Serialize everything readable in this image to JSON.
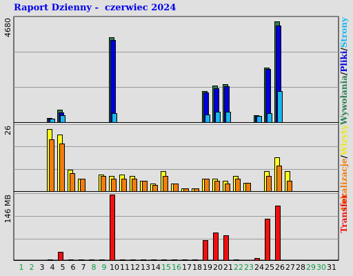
{
  "chart_data": {
    "type": "bar",
    "title": "Raport Dzienny -  czerwiec 2024",
    "days": [
      "1",
      "2",
      "3",
      "4",
      "5",
      "6",
      "7",
      "8",
      "9",
      "10",
      "11",
      "12",
      "13",
      "14",
      "15",
      "16",
      "17",
      "18",
      "19",
      "20",
      "21",
      "22",
      "23",
      "24",
      "25",
      "26",
      "27",
      "28",
      "29",
      "30",
      "31"
    ],
    "weekend_days": [
      1,
      2,
      8,
      9,
      15,
      16,
      22,
      23,
      29,
      30
    ],
    "colors": {
      "visits": "#2f7f4f",
      "pages": "#0000dd",
      "hits": "#19b6f0",
      "locations": "#ffff22",
      "visitors": "#f07d10",
      "transfer": "#ee1111",
      "weekday_label": "#000000",
      "weekend_label": "#119944"
    },
    "panels": [
      {
        "name": "top",
        "ymax_label": "4680",
        "ylim": [
          0,
          4680
        ],
        "legend": [
          {
            "text": "Wywołania",
            "color": "#2f7f4f"
          },
          {
            "text": "/",
            "color": "#000000"
          },
          {
            "text": "Pliki",
            "color": "#0000dd"
          },
          {
            "text": "/",
            "color": "#000000"
          },
          {
            "text": "Strony",
            "color": "#19b6f0"
          }
        ],
        "series": [
          {
            "name": "Wywołania",
            "color": "#2f7f4f",
            "values": [
              0,
              0,
              0,
              180,
              560,
              0,
              0,
              0,
              0,
              3820,
              0,
              0,
              0,
              0,
              0,
              0,
              0,
              0,
              1380,
              1650,
              1720,
              0,
              0,
              320,
              2460,
              4540,
              0,
              0,
              0,
              0,
              0
            ]
          },
          {
            "name": "Pliki",
            "color": "#0000dd",
            "values": [
              0,
              0,
              0,
              150,
              430,
              0,
              0,
              0,
              0,
              3700,
              0,
              0,
              0,
              0,
              0,
              0,
              0,
              0,
              1320,
              1520,
              1600,
              0,
              0,
              280,
              2380,
              4350,
              0,
              0,
              0,
              0,
              0
            ]
          },
          {
            "name": "Strony",
            "color": "#19b6f0",
            "values": [
              0,
              0,
              0,
              150,
              300,
              0,
              0,
              0,
              0,
              400,
              0,
              0,
              0,
              0,
              0,
              0,
              0,
              0,
              330,
              460,
              460,
              0,
              0,
              280,
              400,
              1400,
              0,
              0,
              0,
              0,
              0
            ]
          }
        ]
      },
      {
        "name": "middle",
        "ymax_label": "26",
        "ylim": [
          0,
          26
        ],
        "legend": [
          {
            "text": "Lokalizacje",
            "color": "#f07d10"
          },
          {
            "text": "/",
            "color": "#000000"
          },
          {
            "text": "Wizyty",
            "color": "#e8e820"
          }
        ],
        "series": [
          {
            "name": "Wizyty",
            "color": "#ffff22",
            "values": [
              0,
              0,
              0,
              24.5,
              22.5,
              8.5,
              5,
              0,
              6.5,
              6,
              6.5,
              6,
              4,
              3,
              8,
              3,
              1.2,
              1.2,
              5,
              5,
              4,
              6,
              3.2,
              0,
              8,
              13.5,
              8,
              0,
              0,
              0,
              0
            ]
          },
          {
            "name": "Lokalizacje",
            "color": "#f07d10",
            "values": [
              0,
              0,
              0,
              20.5,
              19,
              7,
              5,
              0,
              6,
              5,
              5,
              5,
              4,
              2.5,
              6,
              3,
              1.2,
              1.2,
              5,
              4,
              3,
              5,
              3.2,
              0,
              6,
              10,
              4,
              0,
              0,
              0,
              0
            ]
          }
        ]
      },
      {
        "name": "bottom",
        "ymax_label": "146 MB",
        "ylim": [
          0,
          146
        ],
        "legend": [
          {
            "text": "Transfer",
            "color": "#ee1111"
          }
        ],
        "series": [
          {
            "name": "Transfer",
            "color": "#ee1111",
            "values": [
              0,
              0,
              0,
              2,
              18,
              2,
              2,
              2,
              2,
              146,
              2,
              2,
              2,
              2,
              2,
              2,
              2,
              2,
              44,
              62,
              56,
              2,
              0,
              4,
              92,
              122,
              0,
              0,
              0,
              0,
              0
            ]
          }
        ]
      }
    ]
  }
}
